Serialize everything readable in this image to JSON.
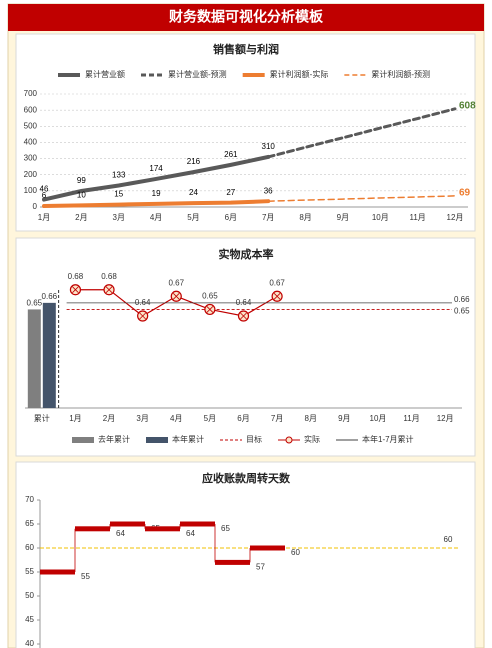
{
  "title": "财务数据可视化分析模板",
  "chart_data": [
    {
      "type": "line",
      "title": "销售额与利润",
      "categories": [
        "1月",
        "2月",
        "3月",
        "4月",
        "5月",
        "6月",
        "7月",
        "8月",
        "9月",
        "10月",
        "11月",
        "12月"
      ],
      "ylim": [
        0,
        700
      ],
      "yticks": [
        0,
        100,
        200,
        300,
        400,
        500,
        600,
        700
      ],
      "grid": true,
      "series": [
        {
          "name": "累计营业额",
          "color": "#595959",
          "style": "solid",
          "width": 4,
          "labels": "all",
          "label_color": "#000000",
          "values": [
            46,
            99,
            133,
            174,
            216,
            261,
            310,
            null,
            null,
            null,
            null,
            null
          ]
        },
        {
          "name": "累计营业额-预测",
          "color": "#595959",
          "style": "dashed",
          "width": 3,
          "labels": "last",
          "label_color": "#548235",
          "values": [
            null,
            null,
            null,
            null,
            null,
            null,
            310,
            370,
            429,
            489,
            548,
            608
          ]
        },
        {
          "name": "累计利润额-实际",
          "color": "#ed7d31",
          "style": "solid",
          "width": 4,
          "labels": "all",
          "label_color": "#000000",
          "values": [
            6,
            10,
            15,
            19,
            24,
            27,
            36,
            null,
            null,
            null,
            null,
            null
          ]
        },
        {
          "name": "累计利润额-预测",
          "color": "#ed7d31",
          "style": "dashed",
          "width": 1.5,
          "labels": "last",
          "label_color": "#ed7d31",
          "values": [
            null,
            null,
            null,
            null,
            null,
            null,
            36,
            43,
            49,
            56,
            62,
            69
          ]
        }
      ]
    },
    {
      "type": "combo",
      "title": "实物成本率",
      "categories": [
        "累计",
        "1月",
        "2月",
        "3月",
        "4月",
        "5月",
        "6月",
        "7月",
        "8月",
        "9月",
        "10月",
        "11月",
        "12月"
      ],
      "ylim": [
        0.5,
        0.71
      ],
      "series": [
        {
          "name": "去年累计",
          "type": "bar",
          "color": "#7f7f7f",
          "values": [
            0.65,
            null,
            null,
            null,
            null,
            null,
            null,
            null,
            null,
            null,
            null,
            null,
            null
          ]
        },
        {
          "name": "本年累计",
          "type": "bar",
          "color": "#44546a",
          "values": [
            0.66,
            null,
            null,
            null,
            null,
            null,
            null,
            null,
            null,
            null,
            null,
            null,
            null
          ]
        },
        {
          "name": "目标",
          "type": "hline",
          "color": "#c00000",
          "style": "dashed",
          "value": 0.65
        },
        {
          "name": "实际",
          "type": "line",
          "color": "#c00000",
          "values": [
            null,
            0.68,
            0.68,
            0.64,
            0.67,
            0.65,
            0.64,
            0.67,
            null,
            null,
            null,
            null,
            null
          ]
        },
        {
          "name": "本年1-7月累计",
          "type": "hline",
          "color": "#404040",
          "style": "solid",
          "value": 0.66
        }
      ]
    },
    {
      "type": "step",
      "title": "应收账款周转天数",
      "ylim": [
        40,
        70
      ],
      "yticks": [
        40,
        45,
        50,
        55,
        60,
        65,
        70
      ],
      "color": "#c00000",
      "values": [
        55,
        64,
        65,
        64,
        65,
        57,
        60
      ],
      "target": {
        "value": 60,
        "color": "#f0c000"
      }
    }
  ]
}
